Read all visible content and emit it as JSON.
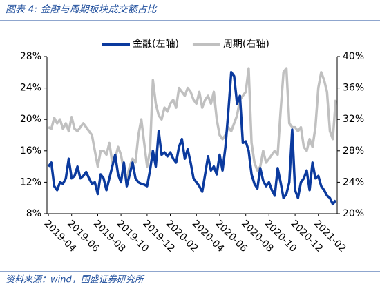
{
  "chart_data": {
    "type": "line",
    "title": "图表 4:  金融与周期板块成交额占比",
    "source": "资料来源：wind，国盛证券研究所",
    "categories": [
      "2019-04",
      null,
      null,
      null,
      null,
      null,
      null,
      null,
      "2019-06",
      null,
      null,
      null,
      null,
      null,
      null,
      null,
      null,
      "2019-08",
      null,
      null,
      null,
      null,
      null,
      null,
      null,
      "2019-10",
      null,
      null,
      null,
      null,
      null,
      null,
      null,
      null,
      "2019-12",
      null,
      null,
      null,
      null,
      null,
      null,
      null,
      "2020-02",
      null,
      null,
      null,
      null,
      null,
      null,
      null,
      null,
      "2020-04",
      null,
      null,
      null,
      null,
      null,
      null,
      null,
      "2020-06",
      null,
      null,
      null,
      null,
      null,
      null,
      null,
      null,
      "2020-08",
      null,
      null,
      null,
      null,
      null,
      null,
      null,
      "2020-10",
      null,
      null,
      null,
      null,
      null,
      null,
      null,
      null,
      "2020-12",
      null,
      null,
      null,
      null,
      null,
      null,
      null,
      "2021-02",
      null,
      null,
      null,
      null,
      null,
      null
    ],
    "series": [
      {
        "name": "金融(左轴)",
        "color": "#0b3a9e",
        "axis": "y",
        "values": [
          14,
          14.5,
          11.5,
          11,
          12,
          11.8,
          12.5,
          15,
          12.5,
          12.8,
          14,
          12.5,
          12.8,
          13.3,
          12.5,
          11.8,
          12,
          10.5,
          13,
          12.5,
          11,
          12.5,
          14,
          15.5,
          13,
          12,
          14.5,
          11.5,
          13,
          14.5,
          12.5,
          12,
          11.8,
          11.7,
          11.5,
          13.5,
          16,
          14,
          18.5,
          15.5,
          15.8,
          15.3,
          15.8,
          15,
          14.5,
          16.5,
          17.5,
          15,
          16.2,
          14.5,
          12.5,
          12,
          11.5,
          10.8,
          13,
          15.3,
          13.5,
          14,
          13,
          15.5,
          13.5,
          16.5,
          21,
          26,
          25.5,
          22,
          23,
          17,
          17.2,
          16,
          13,
          11.8,
          11.2,
          13.8,
          12.2,
          11.5,
          12,
          11,
          10.3,
          13.8,
          12,
          10,
          10.5,
          12,
          18.7,
          11,
          10,
          12,
          12.5,
          13.5,
          11,
          14.5,
          12.5,
          12.8,
          11.5,
          11,
          10.3,
          10,
          9.2,
          9.7
        ]
      },
      {
        "name": "周期(右轴)",
        "color": "#c0c0c0",
        "axis": "y2",
        "values": [
          31,
          30.8,
          32.2,
          31.5,
          32,
          30.8,
          31.5,
          30.5,
          32.3,
          30.8,
          30.5,
          31,
          31.5,
          31,
          30.5,
          30,
          28,
          26,
          28,
          28,
          27.5,
          29,
          26.5,
          27,
          28.5,
          27.5,
          25.5,
          24.5,
          26,
          27,
          26.5,
          30,
          32,
          29,
          26,
          28,
          37,
          34,
          32.5,
          32,
          33.5,
          33,
          34,
          34.5,
          33.5,
          36,
          35.5,
          35,
          36,
          35.5,
          34.5,
          34,
          35.5,
          33.5,
          34.5,
          35,
          34,
          35.5,
          32,
          30,
          29.5,
          30,
          31,
          30.5,
          31.5,
          32.5,
          34.5,
          35,
          35.5,
          38.5,
          29,
          26.5,
          25.5,
          26,
          28,
          26.5,
          27,
          27.5,
          28,
          27.5,
          33,
          38,
          38.5,
          31.5,
          31,
          31,
          30.5,
          31,
          28.5,
          28,
          29.5,
          28.5,
          31,
          36,
          38,
          37,
          35.5,
          30.5,
          29.5,
          34.5
        ]
      }
    ],
    "ylim": [
      8,
      28
    ],
    "yticks": [
      {
        "value": 8,
        "label": "8%"
      },
      {
        "value": 12,
        "label": "12%"
      },
      {
        "value": 16,
        "label": "16%"
      },
      {
        "value": 20,
        "label": "20%"
      },
      {
        "value": 24,
        "label": "24%"
      },
      {
        "value": 28,
        "label": "28%"
      }
    ],
    "y2lim": [
      20,
      40
    ],
    "y2ticks": [
      {
        "value": 20,
        "label": "20%"
      },
      {
        "value": 24,
        "label": "24%"
      },
      {
        "value": 28,
        "label": "28%"
      },
      {
        "value": 32,
        "label": "32%"
      },
      {
        "value": 36,
        "label": "36%"
      },
      {
        "value": 40,
        "label": "40%"
      }
    ],
    "grid": false
  }
}
